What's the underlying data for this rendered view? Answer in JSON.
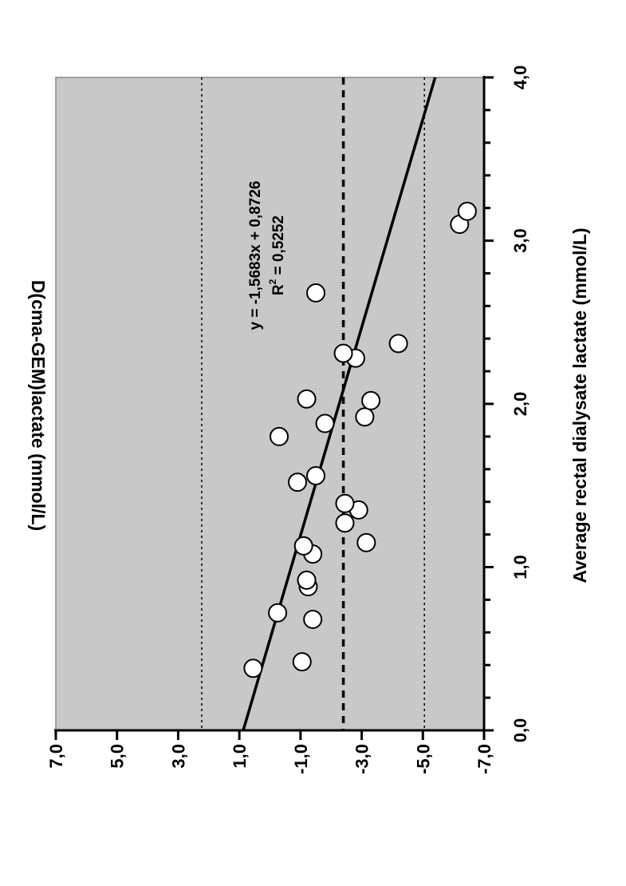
{
  "chart_data": {
    "type": "scatter",
    "orientation": "rotated 90° counter-clockwise",
    "xlabel": "Average rectal dialysate lactate (mmol/L)",
    "ylabel": "D(cma-GEM)lactate (mmol/L)",
    "xlim": [
      0.0,
      4.0
    ],
    "ylim": [
      -7.0,
      7.0
    ],
    "x_ticks": [
      "0,0",
      "1,0",
      "2,0",
      "3,0",
      "4,0"
    ],
    "y_ticks": [
      "-7,0",
      "-5,0",
      "-3,0",
      "-1,0",
      "1,0",
      "3,0",
      "5,0",
      "7,0"
    ],
    "x_minor_step": 0.2,
    "background_color": "#c8c8c8",
    "points": [
      {
        "x": 0.38,
        "y": 0.55
      },
      {
        "x": 0.42,
        "y": -1.05
      },
      {
        "x": 0.68,
        "y": -1.4
      },
      {
        "x": 0.72,
        "y": -0.25
      },
      {
        "x": 0.88,
        "y": -1.25
      },
      {
        "x": 0.92,
        "y": -1.2
      },
      {
        "x": 1.08,
        "y": -1.4
      },
      {
        "x": 1.13,
        "y": -1.1
      },
      {
        "x": 1.15,
        "y": -3.15
      },
      {
        "x": 1.27,
        "y": -2.45
      },
      {
        "x": 1.35,
        "y": -2.9
      },
      {
        "x": 1.39,
        "y": -2.45
      },
      {
        "x": 1.52,
        "y": -0.9
      },
      {
        "x": 1.56,
        "y": -1.5
      },
      {
        "x": 1.8,
        "y": -0.3
      },
      {
        "x": 1.88,
        "y": -1.8
      },
      {
        "x": 1.92,
        "y": -3.1
      },
      {
        "x": 2.02,
        "y": -3.3
      },
      {
        "x": 2.03,
        "y": -1.2
      },
      {
        "x": 2.28,
        "y": -2.8
      },
      {
        "x": 2.31,
        "y": -2.4
      },
      {
        "x": 2.37,
        "y": -4.2
      },
      {
        "x": 2.68,
        "y": -1.5
      },
      {
        "x": 3.1,
        "y": -6.2
      },
      {
        "x": 3.18,
        "y": -6.45
      }
    ],
    "regression": {
      "slope": -1.5683,
      "intercept": 0.8726,
      "equation": "y = -1,5683x + 0,8726",
      "r2_label": "R",
      "r2_sup": "2",
      "r2_value": " = 0,5252"
    },
    "reference_lines": [
      {
        "y": -2.4,
        "style": "dashed-thick"
      },
      {
        "y": 2.23,
        "style": "dotted"
      },
      {
        "y": -5.05,
        "style": "dotted"
      }
    ]
  }
}
